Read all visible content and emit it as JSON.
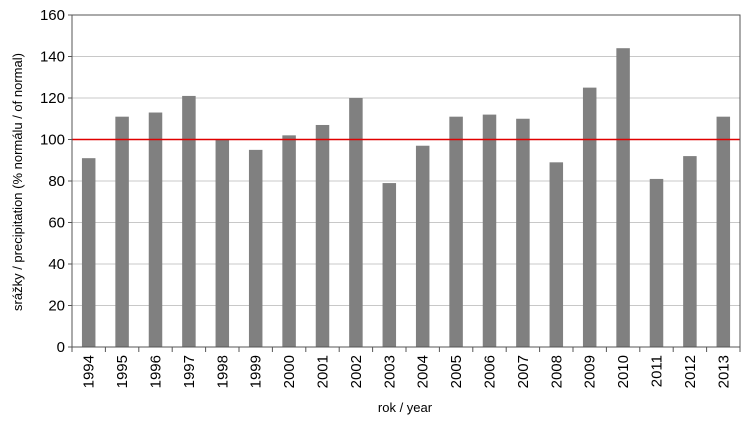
{
  "chart_data": {
    "type": "bar",
    "title": "",
    "xlabel": "rok / year",
    "ylabel": "srážky / precipitation (% normálu / of normal)",
    "categories": [
      "1994",
      "1995",
      "1996",
      "1997",
      "1998",
      "1999",
      "2000",
      "2001",
      "2002",
      "2003",
      "2004",
      "2005",
      "2006",
      "2007",
      "2008",
      "2009",
      "2010",
      "2011",
      "2012",
      "2013"
    ],
    "values": [
      91,
      111,
      113,
      121,
      100,
      95,
      102,
      107,
      120,
      79,
      97,
      111,
      112,
      110,
      89,
      125,
      144,
      81,
      92,
      111
    ],
    "ylim": [
      0,
      160
    ],
    "yticks": [
      0,
      20,
      40,
      60,
      80,
      100,
      120,
      140,
      160
    ],
    "reference_line": 100,
    "grid": true,
    "legend": "none",
    "colors": {
      "bar": "#808080",
      "reference_line": "#e00000",
      "grid": "#c8c8c8",
      "axis": "#555555"
    }
  }
}
